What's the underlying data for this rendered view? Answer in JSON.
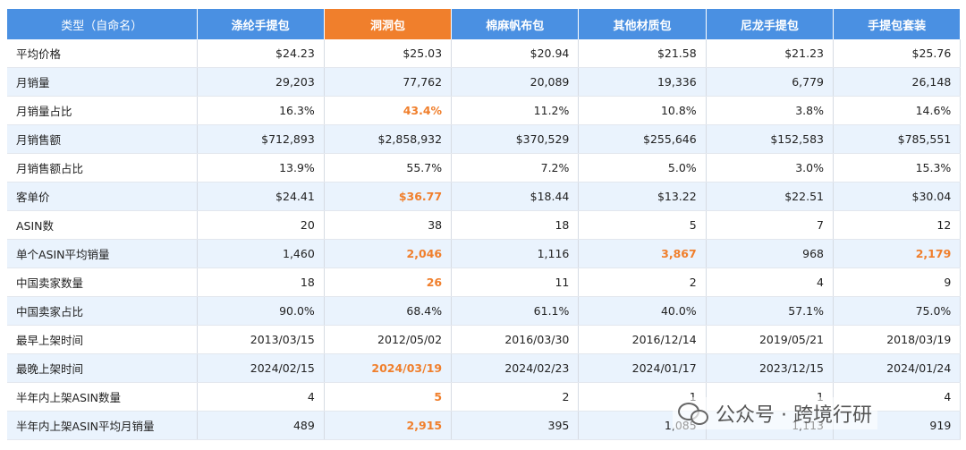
{
  "header": [
    "类型（自命名）",
    "涤纶手提包",
    "洞洞包",
    "棉麻帆布包",
    "其他材质包",
    "尼龙手提包",
    "手提包套装"
  ],
  "highlight_color": "#f07f2c",
  "header_color": "#4a90e2",
  "rows": [
    {
      "label": "平均价格",
      "cells": [
        "$24.23",
        "$25.03",
        "$20.94",
        "$21.58",
        "$21.23",
        "$25.76"
      ],
      "hl": []
    },
    {
      "label": "月销量",
      "cells": [
        "29,203",
        "77,762",
        "20,089",
        "19,336",
        "6,779",
        "26,148"
      ],
      "hl": []
    },
    {
      "label": "月销量占比",
      "cells": [
        "16.3%",
        "43.4%",
        "11.2%",
        "10.8%",
        "3.8%",
        "14.6%"
      ],
      "hl": [
        1
      ]
    },
    {
      "label": "月销售额",
      "cells": [
        "$712,893",
        "$2,858,932",
        "$370,529",
        "$255,646",
        "$152,583",
        "$785,551"
      ],
      "hl": []
    },
    {
      "label": "月销售额占比",
      "cells": [
        "13.9%",
        "55.7%",
        "7.2%",
        "5.0%",
        "3.0%",
        "15.3%"
      ],
      "hl": []
    },
    {
      "label": "客单价",
      "cells": [
        "$24.41",
        "$36.77",
        "$18.44",
        "$13.22",
        "$22.51",
        "$30.04"
      ],
      "hl": [
        1
      ]
    },
    {
      "label": "ASIN数",
      "cells": [
        "20",
        "38",
        "18",
        "5",
        "7",
        "12"
      ],
      "hl": []
    },
    {
      "label": "单个ASIN平均销量",
      "cells": [
        "1,460",
        "2,046",
        "1,116",
        "3,867",
        "968",
        "2,179"
      ],
      "hl": [
        1,
        3,
        5
      ]
    },
    {
      "label": "中国卖家数量",
      "cells": [
        "18",
        "26",
        "11",
        "2",
        "4",
        "9"
      ],
      "hl": [
        1
      ]
    },
    {
      "label": "中国卖家占比",
      "cells": [
        "90.0%",
        "68.4%",
        "61.1%",
        "40.0%",
        "57.1%",
        "75.0%"
      ],
      "hl": []
    },
    {
      "label": "最早上架时间",
      "cells": [
        "2013/03/15",
        "2012/05/02",
        "2016/03/30",
        "2016/12/14",
        "2019/05/21",
        "2018/03/19"
      ],
      "hl": []
    },
    {
      "label": "最晚上架时间",
      "cells": [
        "2024/02/15",
        "2024/03/19",
        "2024/02/23",
        "2024/01/17",
        "2023/12/15",
        "2024/01/24"
      ],
      "hl": [
        1
      ]
    },
    {
      "label": "半年内上架ASIN数量",
      "cells": [
        "4",
        "5",
        "2",
        "1",
        "1",
        "4"
      ],
      "hl": [
        1
      ]
    },
    {
      "label": "半年内上架ASIN平均月销量",
      "cells": [
        "489",
        "2,915",
        "395",
        "1,085",
        "1,113",
        "919"
      ],
      "hl": [
        1
      ]
    }
  ],
  "watermark": "公众号 · 跨境行研"
}
